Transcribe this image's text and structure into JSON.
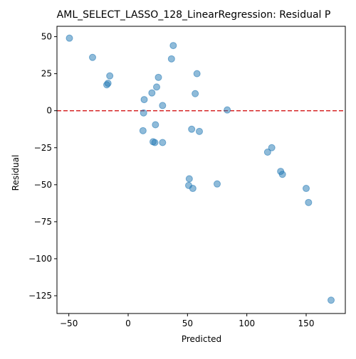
{
  "chart_data": {
    "type": "scatter",
    "title": "AML_SELECT_LASSO_128_LinearRegression: Residual P",
    "xlabel": "Predicted",
    "ylabel": "Residual",
    "xlim": [
      -60,
      183
    ],
    "ylim": [
      -137,
      57
    ],
    "xticks": [
      -50,
      0,
      50,
      100,
      150
    ],
    "yticks": [
      50,
      25,
      0,
      -25,
      -50,
      -75,
      -100,
      -125
    ],
    "xtick_labels": [
      "−50",
      "0",
      "50",
      "100",
      "150"
    ],
    "ytick_labels": [
      "50",
      "25",
      "0",
      "−25",
      "−50",
      "−75",
      "−100",
      "−125"
    ],
    "reference_line": {
      "y": 0,
      "style": "dashed",
      "color": "#d62728"
    },
    "point_color": "#1f77b4",
    "points": [
      {
        "x": -49.5,
        "y": 49.0
      },
      {
        "x": -30.0,
        "y": 36.0
      },
      {
        "x": -15.5,
        "y": 23.5
      },
      {
        "x": -17.0,
        "y": 18.5
      },
      {
        "x": -18.0,
        "y": 17.5
      },
      {
        "x": 13.5,
        "y": 7.5
      },
      {
        "x": 13.0,
        "y": -1.5
      },
      {
        "x": 12.5,
        "y": -13.5
      },
      {
        "x": 20.0,
        "y": 12.0
      },
      {
        "x": 21.0,
        "y": -21.0
      },
      {
        "x": 22.5,
        "y": -21.5
      },
      {
        "x": 23.0,
        "y": -9.5
      },
      {
        "x": 24.0,
        "y": 16.0
      },
      {
        "x": 25.5,
        "y": 22.5
      },
      {
        "x": 29.0,
        "y": 3.5
      },
      {
        "x": 29.0,
        "y": -21.5
      },
      {
        "x": 36.5,
        "y": 35.0
      },
      {
        "x": 38.0,
        "y": 44.0
      },
      {
        "x": 51.5,
        "y": -46.0
      },
      {
        "x": 51.0,
        "y": -50.5
      },
      {
        "x": 53.5,
        "y": -12.5
      },
      {
        "x": 54.5,
        "y": -52.5
      },
      {
        "x": 56.5,
        "y": 11.5
      },
      {
        "x": 58.0,
        "y": 25.0
      },
      {
        "x": 60.0,
        "y": -14.0
      },
      {
        "x": 75.0,
        "y": -49.5
      },
      {
        "x": 83.5,
        "y": 0.5
      },
      {
        "x": 117.5,
        "y": -28.0
      },
      {
        "x": 121.0,
        "y": -25.0
      },
      {
        "x": 128.5,
        "y": -41.0
      },
      {
        "x": 130.0,
        "y": -43.0
      },
      {
        "x": 150.0,
        "y": -52.5
      },
      {
        "x": 152.0,
        "y": -62.0
      },
      {
        "x": 171.0,
        "y": -128.0
      }
    ]
  }
}
